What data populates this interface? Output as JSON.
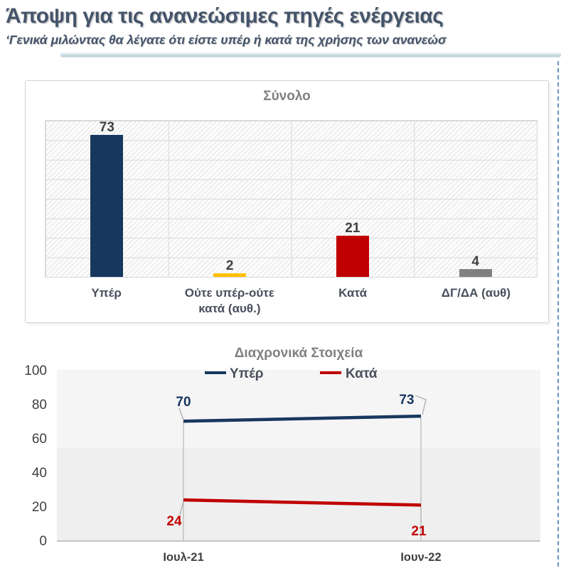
{
  "page": {
    "title": "Άποψη για τις ανανεώσιμες πηγές ενέργειας",
    "subtitle": "‘Γενικά μιλώντας θα λέγατε ότι είστε υπέρ ή κατά της χρήσης των ανανεώσ",
    "divider_color": "#b7cfd8",
    "selection_border_color": "#4f81bd"
  },
  "chart_data": [
    {
      "type": "bar",
      "title": "Σύνολο",
      "categories": [
        "Υπέρ",
        "Ούτε υπέρ-ούτε κατά (αυθ.)",
        "Κατά",
        "ΔΓ/ΔΑ (αυθ)"
      ],
      "values": [
        73,
        2,
        21,
        4
      ],
      "colors": [
        "#17375D",
        "#FFC000",
        "#C00000",
        "#808080"
      ],
      "ylim": [
        0,
        80
      ],
      "grid": "horizontal+vertical, hatched plot background",
      "value_label_color": "#404040"
    },
    {
      "type": "line",
      "title": "Διαχρονικά Στοιχεία",
      "categories": [
        "Ιουλ-21",
        "Ιουν-22"
      ],
      "series": [
        {
          "name": "Υπέρ",
          "values": [
            70,
            73
          ],
          "color": "#17375E"
        },
        {
          "name": "Κατά",
          "values": [
            24,
            21
          ],
          "color": "#C00000"
        }
      ],
      "ylim": [
        0,
        100
      ],
      "yticks": [
        100,
        80,
        60,
        40,
        20,
        0
      ],
      "legend_position": "top",
      "plot_background": "#efeff0"
    }
  ]
}
